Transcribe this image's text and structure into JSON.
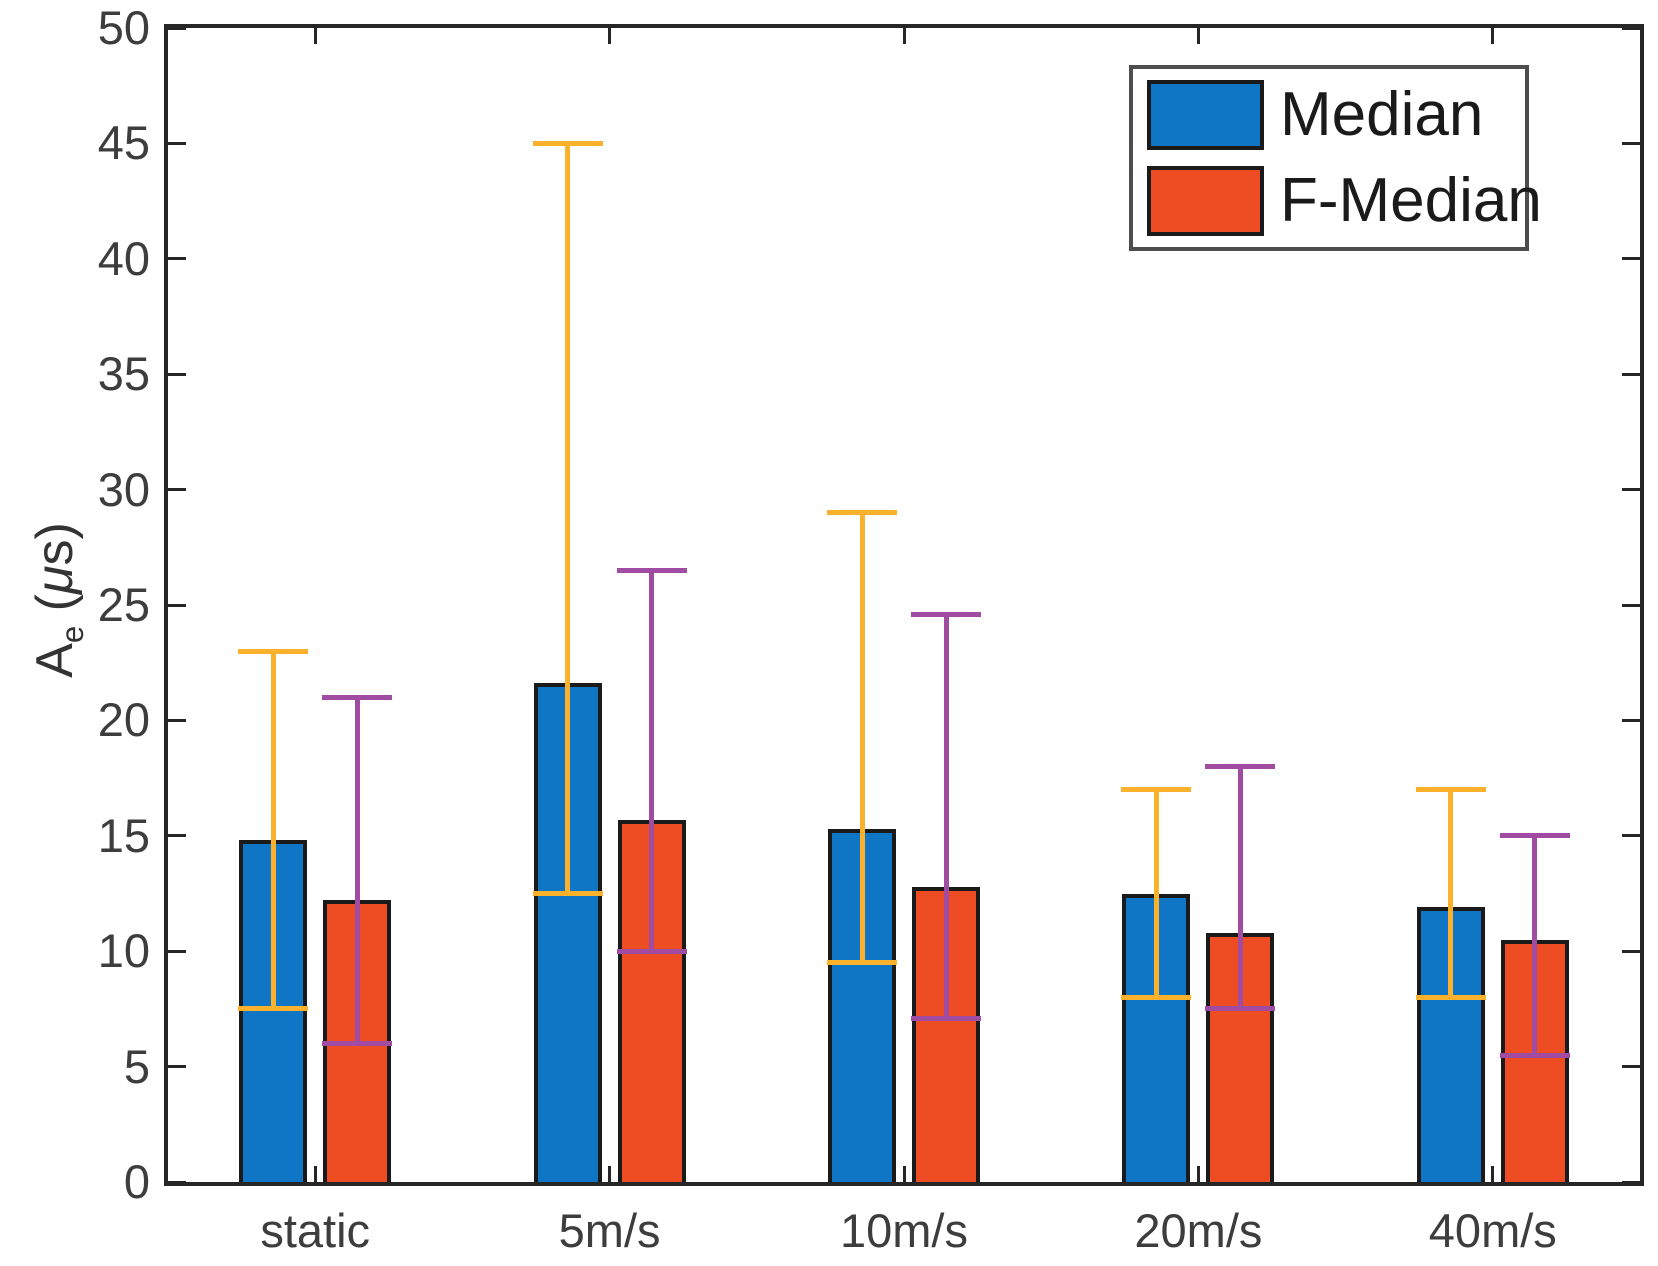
{
  "figure": {
    "background": "#ffffff",
    "ylabel_parts": {
      "base": "A",
      "sub": "e",
      "open": " (",
      "mu": "μ",
      "close": "s)"
    }
  },
  "legend": {
    "items": [
      {
        "label": "Median",
        "color": "#0E76C5"
      },
      {
        "label": "F-Median",
        "color": "#EE4D23"
      }
    ]
  },
  "colors": {
    "axis": "#262626",
    "tick_label": "#3d3d3d",
    "bar_border": "#1a1a1a",
    "legend_border": "#4d4d4d",
    "median_bar": "#0E76C5",
    "fmedian_bar": "#EE4D23",
    "median_error": "#FBB12B",
    "fmedian_error": "#A14CA3"
  },
  "chart_data": {
    "type": "bar",
    "title": "",
    "xlabel": "",
    "ylabel": "A_e (μs)",
    "categories": [
      "static",
      "5m/s",
      "10m/s",
      "20m/s",
      "40m/s"
    ],
    "series": [
      {
        "name": "Median",
        "color": "#0E76C5",
        "error_color": "#FBB12B",
        "values": [
          14.8,
          21.6,
          15.3,
          12.5,
          11.9
        ],
        "error_low": [
          7.5,
          12.5,
          9.5,
          8.0,
          8.0
        ],
        "error_high": [
          23.0,
          45.0,
          29.0,
          17.0,
          17.0
        ]
      },
      {
        "name": "F-Median",
        "color": "#EE4D23",
        "error_color": "#A14CA3",
        "values": [
          12.2,
          15.7,
          12.8,
          10.8,
          10.5
        ],
        "error_low": [
          6.0,
          10.0,
          7.1,
          7.5,
          5.5
        ],
        "error_high": [
          21.0,
          26.5,
          24.6,
          18.0,
          15.0
        ]
      }
    ],
    "ylim": [
      0,
      50
    ],
    "yticks": [
      0,
      5,
      10,
      15,
      20,
      25,
      30,
      35,
      40,
      45,
      50
    ],
    "grid": false,
    "legend_position": "top-right"
  }
}
